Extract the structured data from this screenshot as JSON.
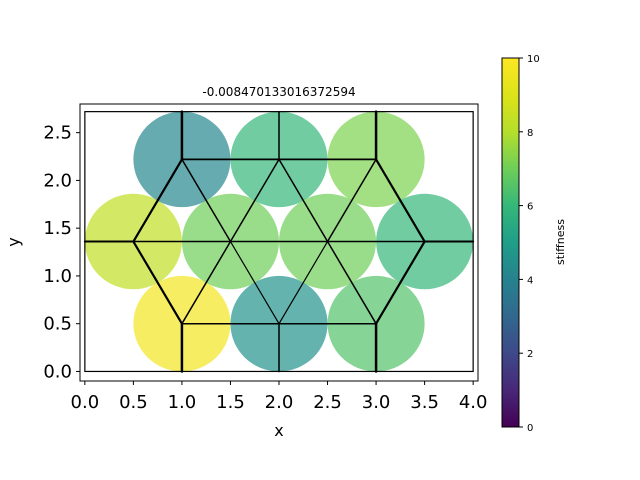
{
  "chart_data": {
    "type": "scatter",
    "title": "-0.008470133016372594",
    "xlabel": "x",
    "ylabel": "y",
    "xlim": [
      -0.05,
      4.05
    ],
    "ylim": [
      -0.1,
      2.8
    ],
    "xticks": [
      "0.0",
      "0.5",
      "1.0",
      "1.5",
      "2.0",
      "2.5",
      "3.0",
      "3.5",
      "4.0"
    ],
    "xtick_values": [
      0,
      0.5,
      1,
      1.5,
      2,
      2.5,
      3,
      3.5,
      4
    ],
    "yticks": [
      "0.0",
      "0.5",
      "1.0",
      "1.5",
      "2.0",
      "2.5"
    ],
    "ytick_values": [
      0,
      0.5,
      1,
      1.5,
      2,
      2.5
    ],
    "circle_radius": 0.5,
    "boundary_box": {
      "x": [
        0,
        4
      ],
      "y": [
        0,
        2.72
      ]
    },
    "cells": [
      {
        "x": 0.5,
        "y": 1.36,
        "stiffness": 8.3
      },
      {
        "x": 1.0,
        "y": 0.5,
        "stiffness": 9.7
      },
      {
        "x": 1.0,
        "y": 2.22,
        "stiffness": 4.2
      },
      {
        "x": 1.5,
        "y": 1.36,
        "stiffness": 7.0
      },
      {
        "x": 2.0,
        "y": 0.5,
        "stiffness": 4.6
      },
      {
        "x": 2.0,
        "y": 2.22,
        "stiffness": 6.0
      },
      {
        "x": 2.5,
        "y": 1.36,
        "stiffness": 7.0
      },
      {
        "x": 3.0,
        "y": 0.5,
        "stiffness": 6.5
      },
      {
        "x": 3.0,
        "y": 2.22,
        "stiffness": 7.2
      },
      {
        "x": 3.5,
        "y": 1.36,
        "stiffness": 6.0
      }
    ],
    "segments": [
      {
        "from": [
          1.0,
          2.22
        ],
        "to": [
          2.0,
          2.22
        ],
        "width": 1.8
      },
      {
        "from": [
          2.0,
          2.22
        ],
        "to": [
          3.0,
          2.22
        ],
        "width": 1.8
      },
      {
        "from": [
          0.5,
          1.36
        ],
        "to": [
          1.5,
          1.36
        ],
        "width": 1.5
      },
      {
        "from": [
          1.5,
          1.36
        ],
        "to": [
          2.5,
          1.36
        ],
        "width": 1.5
      },
      {
        "from": [
          2.5,
          1.36
        ],
        "to": [
          3.5,
          1.36
        ],
        "width": 1.5
      },
      {
        "from": [
          1.0,
          0.5
        ],
        "to": [
          2.0,
          0.5
        ],
        "width": 1.5
      },
      {
        "from": [
          2.0,
          0.5
        ],
        "to": [
          3.0,
          0.5
        ],
        "width": 1.5
      },
      {
        "from": [
          1.0,
          2.22
        ],
        "to": [
          0.5,
          1.36
        ],
        "width": 2.2
      },
      {
        "from": [
          1.0,
          2.22
        ],
        "to": [
          1.5,
          1.36
        ],
        "width": 1.5
      },
      {
        "from": [
          2.0,
          2.22
        ],
        "to": [
          1.5,
          1.36
        ],
        "width": 1.5
      },
      {
        "from": [
          2.0,
          2.22
        ],
        "to": [
          2.5,
          1.36
        ],
        "width": 1.5
      },
      {
        "from": [
          3.0,
          2.22
        ],
        "to": [
          2.5,
          1.36
        ],
        "width": 1.5
      },
      {
        "from": [
          3.0,
          2.22
        ],
        "to": [
          3.5,
          1.36
        ],
        "width": 2.2
      },
      {
        "from": [
          0.5,
          1.36
        ],
        "to": [
          1.0,
          0.5
        ],
        "width": 2.2
      },
      {
        "from": [
          1.5,
          1.36
        ],
        "to": [
          1.0,
          0.5
        ],
        "width": 1.5
      },
      {
        "from": [
          1.5,
          1.36
        ],
        "to": [
          2.0,
          0.5
        ],
        "width": 1.2
      },
      {
        "from": [
          2.5,
          1.36
        ],
        "to": [
          2.0,
          0.5
        ],
        "width": 1.2
      },
      {
        "from": [
          2.5,
          1.36
        ],
        "to": [
          3.0,
          0.5
        ],
        "width": 1.5
      },
      {
        "from": [
          3.5,
          1.36
        ],
        "to": [
          3.0,
          0.5
        ],
        "width": 2.2
      },
      {
        "from": [
          1.0,
          2.22
        ],
        "to": [
          1.0,
          2.72
        ],
        "width": 2.5
      },
      {
        "from": [
          2.0,
          2.22
        ],
        "to": [
          2.0,
          2.72
        ],
        "width": 1.5
      },
      {
        "from": [
          3.0,
          2.22
        ],
        "to": [
          3.0,
          2.72
        ],
        "width": 2.5
      },
      {
        "from": [
          0.5,
          1.36
        ],
        "to": [
          0.0,
          1.36
        ],
        "width": 2.0
      },
      {
        "from": [
          3.5,
          1.36
        ],
        "to": [
          4.0,
          1.36
        ],
        "width": 2.0
      },
      {
        "from": [
          1.0,
          0.5
        ],
        "to": [
          1.0,
          0.0
        ],
        "width": 2.5
      },
      {
        "from": [
          2.0,
          0.5
        ],
        "to": [
          2.0,
          0.0
        ],
        "width": 1.5
      },
      {
        "from": [
          3.0,
          0.5
        ],
        "to": [
          3.0,
          0.0
        ],
        "width": 2.5
      }
    ],
    "colorbar": {
      "label": "stiffness",
      "colormap": "viridis",
      "range": [
        0,
        10
      ],
      "ticks": [
        "0",
        "2",
        "4",
        "6",
        "8",
        "10"
      ],
      "tick_values": [
        0,
        2,
        4,
        6,
        8,
        10
      ]
    },
    "cell_alpha": 0.7,
    "grid": false
  }
}
